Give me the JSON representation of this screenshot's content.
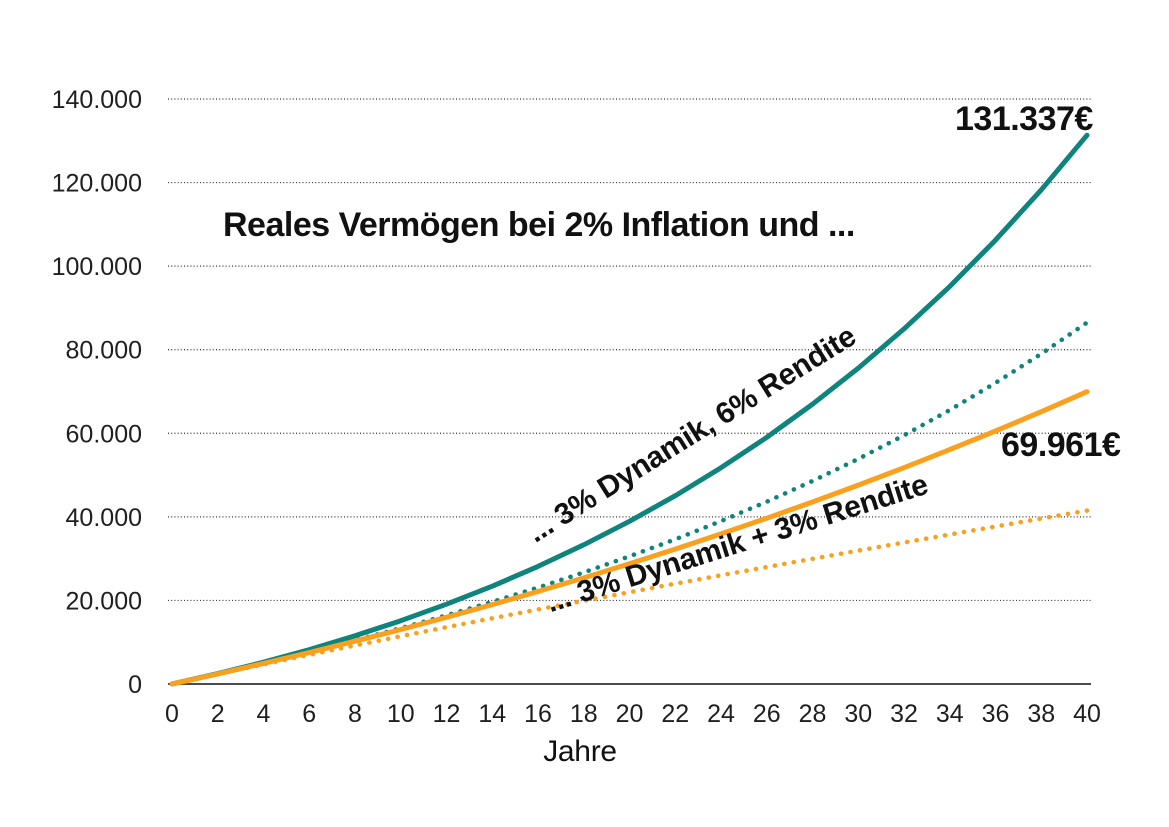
{
  "chart": {
    "background_color": "#FFFFFF",
    "accent_teal": "#0E847C",
    "accent_orange": "#F9A01E"
  },
  "chart_data": {
    "type": "line",
    "title": "Reales Vermögen bei 2% Inflation und ...",
    "xlabel": "Jahre",
    "ylabel": "",
    "xlim": [
      0,
      40
    ],
    "ylim": [
      0,
      140000
    ],
    "grid": "horizontal dotted lines every 20.000, solid axis at 0, no vertical gridlines",
    "legend": "rotated inline labels next to curves",
    "axis_color": "#4D4D4D",
    "grid_color": "#333333",
    "text_color": "#1F1F1F",
    "x_tick_labels": [
      "0",
      "2",
      "4",
      "6",
      "8",
      "10",
      "12",
      "14",
      "16",
      "18",
      "20",
      "22",
      "24",
      "26",
      "28",
      "30",
      "32",
      "34",
      "36",
      "38",
      "40"
    ],
    "y_ticks": [
      {
        "value": 0,
        "label": "0"
      },
      {
        "value": 20000,
        "label": "20.000"
      },
      {
        "value": 40000,
        "label": "40.000"
      },
      {
        "value": 60000,
        "label": "60.000"
      },
      {
        "value": 80000,
        "label": "80.000"
      },
      {
        "value": 100000,
        "label": "100.000"
      },
      {
        "value": 120000,
        "label": "120.000"
      },
      {
        "value": 140000,
        "label": "140.000"
      }
    ],
    "x": [
      0,
      2,
      4,
      6,
      8,
      10,
      12,
      14,
      16,
      18,
      20,
      22,
      24,
      26,
      28,
      30,
      32,
      34,
      36,
      38,
      40
    ],
    "series": [
      {
        "id": "dynamik-6-rendite-solid",
        "label": "... 3% Dynamik, 6% Rendite",
        "style": "solid",
        "color": "#0E847C",
        "end_label": "131.337€",
        "values": [
          0,
          2489,
          5225,
          8230,
          11524,
          15138,
          19092,
          23415,
          28143,
          33301,
          38929,
          45067,
          51756,
          59039,
          66966,
          75589,
          84971,
          95164,
          106243,
          118275,
          131337
        ]
      },
      {
        "id": "6-rendite-dotted",
        "label": "",
        "style": "dotted",
        "color": "#0E847C",
        "end_label": "",
        "values": [
          0,
          2443,
          4988,
          7643,
          10425,
          13343,
          16417,
          19655,
          23078,
          26704,
          30550,
          34636,
          38989,
          43627,
          48576,
          53862,
          59521,
          65575,
          72067,
          79027,
          86500
        ]
      },
      {
        "id": "dynamik-3-rendite-solid",
        "label": "... 3% Dynamik + 3% Rendite",
        "style": "solid",
        "color": "#F9A01E",
        "end_label": "69.961€",
        "values": [
          0,
          2414,
          4924,
          7532,
          10239,
          13052,
          15972,
          19000,
          22142,
          25401,
          28780,
          32280,
          35910,
          39667,
          43562,
          47592,
          51767,
          56084,
          60553,
          65176,
          69961
        ]
      },
      {
        "id": "3-rendite-dotted",
        "label": "",
        "style": "dotted",
        "color": "#F9A01E",
        "end_label": "",
        "values": [
          0,
          2371,
          4697,
          6980,
          9223,
          11429,
          13599,
          15734,
          17843,
          19923,
          21975,
          24003,
          26010,
          27997,
          29965,
          31917,
          33855,
          35779,
          37694,
          39601,
          41500
        ]
      }
    ]
  }
}
